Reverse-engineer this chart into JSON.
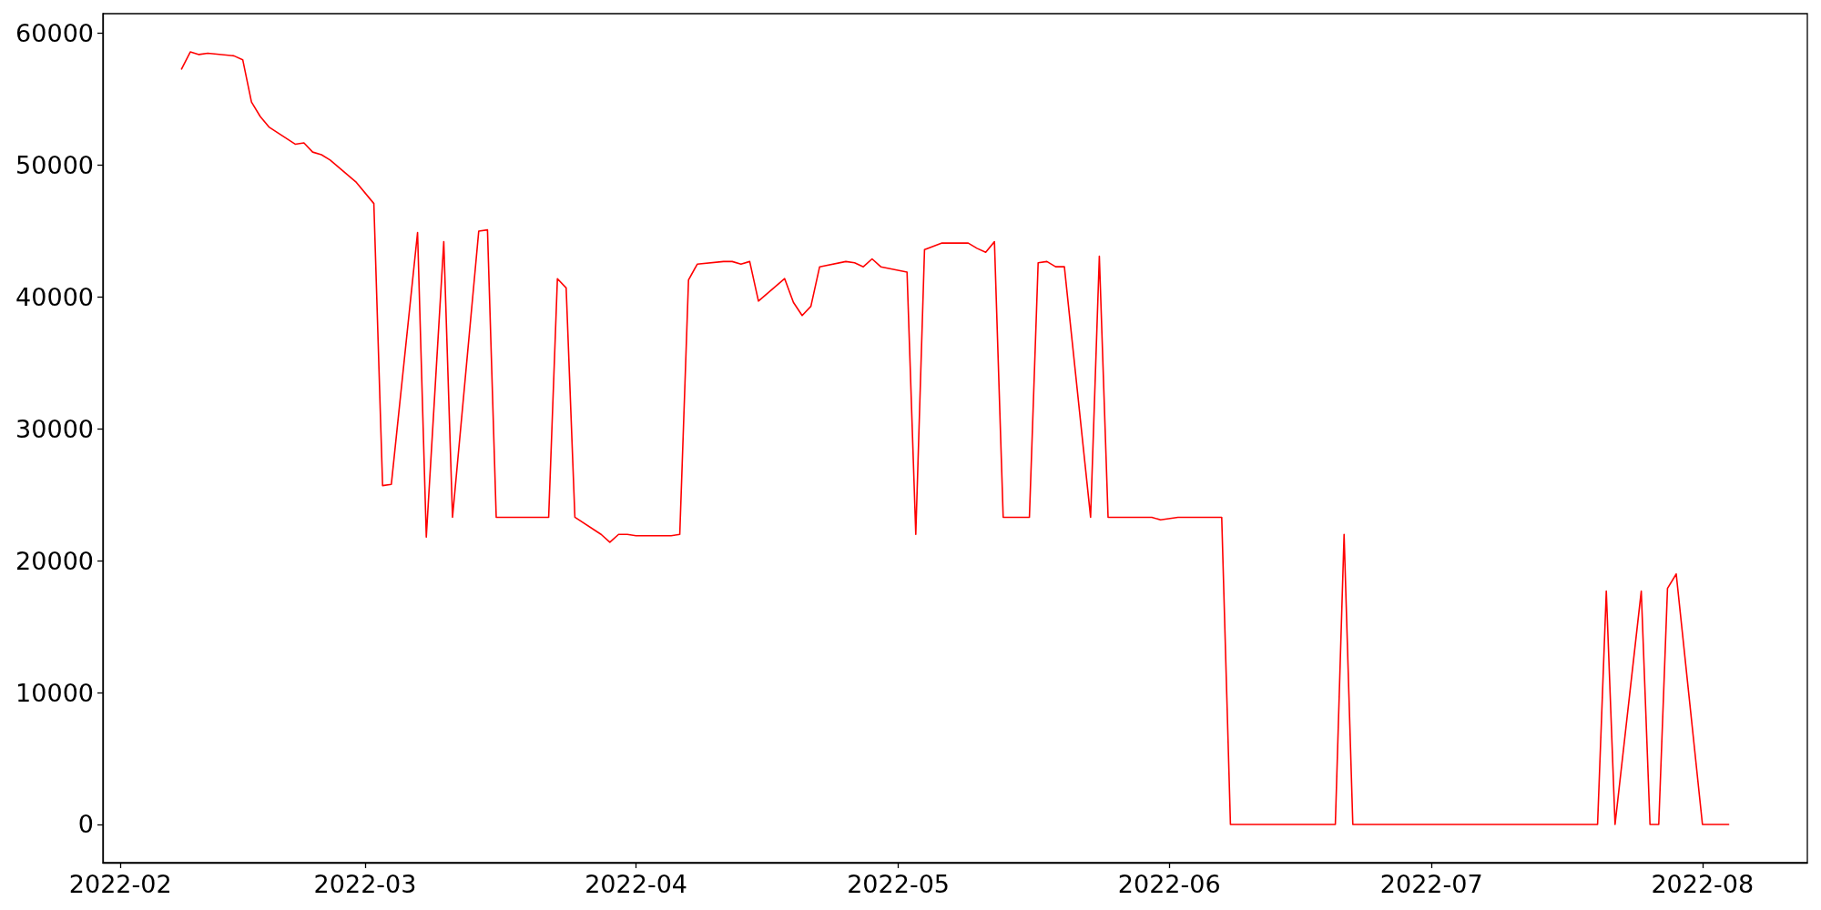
{
  "chart_data": {
    "type": "line",
    "x": [
      "2022-02-08",
      "2022-02-09",
      "2022-02-10",
      "2022-02-11",
      "2022-02-14",
      "2022-02-15",
      "2022-02-16",
      "2022-02-17",
      "2022-02-18",
      "2022-02-21",
      "2022-02-22",
      "2022-02-23",
      "2022-02-24",
      "2022-02-25",
      "2022-02-28",
      "2022-03-02",
      "2022-03-03",
      "2022-03-04",
      "2022-03-07",
      "2022-03-08",
      "2022-03-10",
      "2022-03-11",
      "2022-03-14",
      "2022-03-15",
      "2022-03-16",
      "2022-03-22",
      "2022-03-23",
      "2022-03-24",
      "2022-03-25",
      "2022-03-28",
      "2022-03-29",
      "2022-03-30",
      "2022-03-31",
      "2022-04-01",
      "2022-04-05",
      "2022-04-06",
      "2022-04-07",
      "2022-04-08",
      "2022-04-11",
      "2022-04-12",
      "2022-04-13",
      "2022-04-14",
      "2022-04-15",
      "2022-04-18",
      "2022-04-19",
      "2022-04-20",
      "2022-04-21",
      "2022-04-22",
      "2022-04-25",
      "2022-04-26",
      "2022-04-27",
      "2022-04-28",
      "2022-04-29",
      "2022-05-02",
      "2022-05-03",
      "2022-05-04",
      "2022-05-06",
      "2022-05-09",
      "2022-05-10",
      "2022-05-11",
      "2022-05-12",
      "2022-05-13",
      "2022-05-16",
      "2022-05-17",
      "2022-05-18",
      "2022-05-19",
      "2022-05-20",
      "2022-05-23",
      "2022-05-24",
      "2022-05-25",
      "2022-05-30",
      "2022-05-31",
      "2022-06-02",
      "2022-06-07",
      "2022-06-08",
      "2022-06-20",
      "2022-06-21",
      "2022-06-22",
      "2022-07-20",
      "2022-07-21",
      "2022-07-22",
      "2022-07-25",
      "2022-07-26",
      "2022-07-27",
      "2022-07-28",
      "2022-07-29",
      "2022-08-01",
      "2022-08-04"
    ],
    "series": [
      {
        "color": "#ff0000",
        "values": [
          57300,
          58600,
          58400,
          58500,
          58300,
          58000,
          54800,
          53700,
          52900,
          51600,
          51700,
          51000,
          50800,
          50400,
          48700,
          47100,
          25700,
          25800,
          44900,
          21800,
          44200,
          23300,
          45000,
          45100,
          23300,
          23300,
          41400,
          40700,
          23300,
          22000,
          21400,
          22000,
          22000,
          21900,
          21900,
          22000,
          41300,
          42500,
          42700,
          42700,
          42500,
          42700,
          39700,
          41400,
          39600,
          38600,
          39300,
          42300,
          42700,
          42600,
          42300,
          42900,
          42300,
          41900,
          22000,
          43600,
          44100,
          44100,
          43700,
          43400,
          44200,
          23300,
          23300,
          42600,
          42700,
          42300,
          42300,
          23300,
          43100,
          23300,
          23300,
          23100,
          23300,
          23300,
          0,
          0,
          22000,
          0,
          0,
          17700,
          0,
          17700,
          0,
          0,
          17900,
          19000,
          0,
          0
        ]
      }
    ],
    "xlim": [
      "2022-01-30",
      "2022-08-13"
    ],
    "xticks": [
      {
        "value": "2022-02-01",
        "label": "2022-02"
      },
      {
        "value": "2022-03-01",
        "label": "2022-03"
      },
      {
        "value": "2022-04-01",
        "label": "2022-04"
      },
      {
        "value": "2022-05-01",
        "label": "2022-05"
      },
      {
        "value": "2022-06-01",
        "label": "2022-06"
      },
      {
        "value": "2022-07-01",
        "label": "2022-07"
      },
      {
        "value": "2022-08-01",
        "label": "2022-08"
      }
    ],
    "ylim": [
      -2900,
      61500
    ],
    "yticks": [
      0,
      10000,
      20000,
      30000,
      40000,
      50000,
      60000
    ],
    "grid": false,
    "marker": "none",
    "line_style": "solid"
  }
}
